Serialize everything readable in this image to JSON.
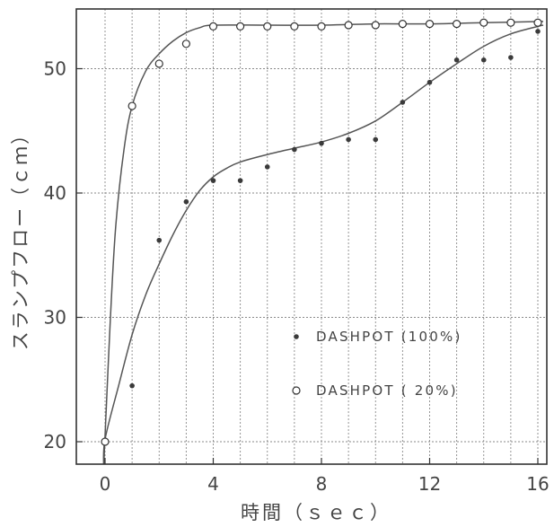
{
  "chart_data": {
    "type": "scatter",
    "title": "",
    "xlabel": "時間（ｓｅｃ）",
    "ylabel": "スランプフロー（ｃｍ）",
    "xlim": [
      -0.2,
      16.2
    ],
    "ylim": [
      18,
      55.5
    ],
    "x_ticks": [
      0,
      4,
      8,
      12,
      16
    ],
    "y_ticks": [
      20,
      30,
      40,
      50
    ],
    "x_grid": [
      0,
      1,
      2,
      3,
      4,
      5,
      6,
      7,
      8,
      9,
      10,
      11,
      12,
      13,
      14,
      15,
      16
    ],
    "y_grid": [
      20,
      30,
      40,
      50
    ],
    "grid": true,
    "legend_position": "lower-right (inside plot)",
    "series": [
      {
        "name": "DASHPOT (100%)",
        "marker": "filled-circle",
        "points": [
          [
            0,
            20.0
          ],
          [
            1,
            24.5
          ],
          [
            2,
            36.2
          ],
          [
            3,
            39.3
          ],
          [
            4,
            41.0
          ],
          [
            5,
            41.0
          ],
          [
            6,
            42.1
          ],
          [
            7,
            43.5
          ],
          [
            8,
            44.0
          ],
          [
            9,
            44.3
          ],
          [
            10,
            44.3
          ],
          [
            11,
            47.3
          ],
          [
            12,
            48.9
          ],
          [
            13,
            50.7
          ],
          [
            14,
            50.7
          ],
          [
            15,
            50.9
          ],
          [
            16,
            53.0
          ]
        ],
        "fit_curve": [
          [
            -0.05,
            18.0
          ],
          [
            0,
            20.2
          ],
          [
            0.5,
            24.5
          ],
          [
            1,
            28.6
          ],
          [
            1.5,
            31.8
          ],
          [
            2,
            34.3
          ],
          [
            2.5,
            36.6
          ],
          [
            3,
            38.6
          ],
          [
            3.5,
            40.2
          ],
          [
            4,
            41.3
          ],
          [
            4.5,
            42.0
          ],
          [
            5,
            42.5
          ],
          [
            6,
            43.1
          ],
          [
            7,
            43.6
          ],
          [
            8,
            44.1
          ],
          [
            9,
            44.8
          ],
          [
            10,
            45.8
          ],
          [
            11,
            47.3
          ],
          [
            12,
            48.9
          ],
          [
            13,
            50.4
          ],
          [
            14,
            51.8
          ],
          [
            15,
            52.8
          ],
          [
            16,
            53.4
          ],
          [
            16.2,
            53.5
          ]
        ]
      },
      {
        "name": "DASHPOT ( 20%)",
        "marker": "open-circle",
        "points": [
          [
            0,
            20.0
          ],
          [
            1,
            47.0
          ],
          [
            2,
            50.4
          ],
          [
            3,
            52.0
          ],
          [
            4,
            53.4
          ],
          [
            5,
            53.4
          ],
          [
            6,
            53.4
          ],
          [
            7,
            53.4
          ],
          [
            8,
            53.4
          ],
          [
            9,
            53.5
          ],
          [
            10,
            53.5
          ],
          [
            11,
            53.6
          ],
          [
            12,
            53.6
          ],
          [
            13,
            53.6
          ],
          [
            14,
            53.7
          ],
          [
            15,
            53.7
          ],
          [
            16,
            53.7
          ]
        ],
        "fit_curve": [
          [
            -0.05,
            18.0
          ],
          [
            0,
            20.5
          ],
          [
            0.2,
            30.0
          ],
          [
            0.4,
            37.5
          ],
          [
            0.7,
            43.5
          ],
          [
            1,
            47.0
          ],
          [
            1.5,
            49.8
          ],
          [
            2,
            51.2
          ],
          [
            2.5,
            52.2
          ],
          [
            3,
            52.9
          ],
          [
            3.5,
            53.3
          ],
          [
            4,
            53.5
          ],
          [
            6,
            53.5
          ],
          [
            8,
            53.5
          ],
          [
            10,
            53.6
          ],
          [
            12,
            53.6
          ],
          [
            14,
            53.7
          ],
          [
            16.2,
            53.8
          ]
        ]
      }
    ]
  }
}
